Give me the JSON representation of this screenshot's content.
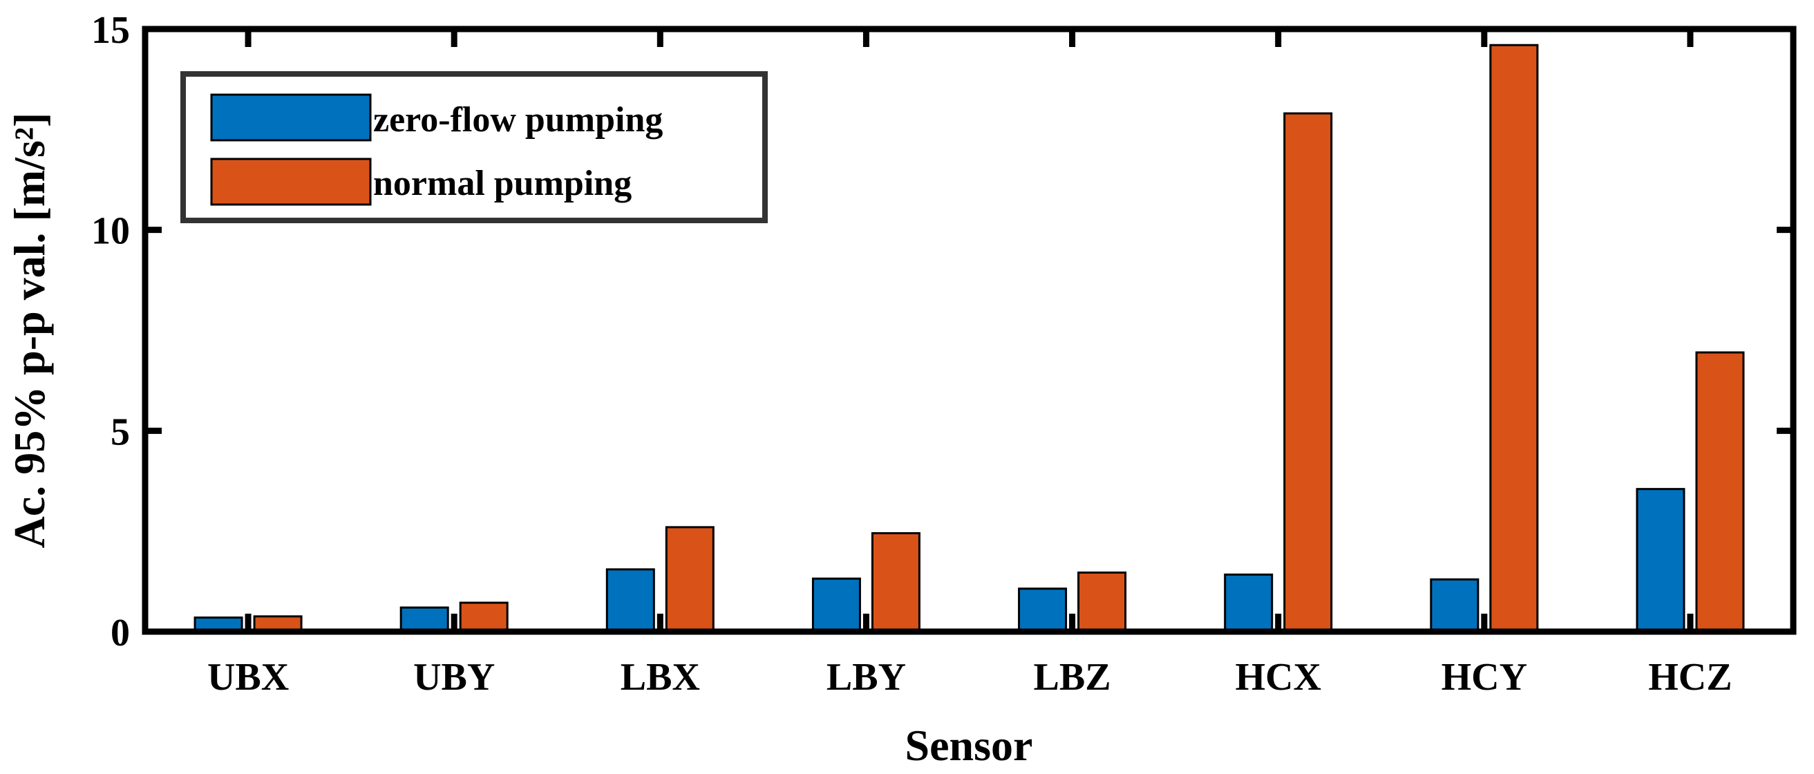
{
  "chart_data": {
    "type": "bar",
    "title": "",
    "xlabel": "Sensor",
    "ylabel": "Ac. 95% p-p val. [m/s²]",
    "categories": [
      "UBX",
      "UBY",
      "LBX",
      "LBY",
      "LBZ",
      "HCX",
      "HCY",
      "HCZ"
    ],
    "series": [
      {
        "name": "zero-flow pumping",
        "color": "#0072BD",
        "values": [
          0.35,
          0.6,
          1.55,
          1.32,
          1.07,
          1.42,
          1.3,
          3.55
        ]
      },
      {
        "name": "normal pumping",
        "color": "#D95319",
        "values": [
          0.38,
          0.72,
          2.6,
          2.45,
          1.47,
          12.9,
          14.6,
          6.95
        ]
      }
    ],
    "ylim": [
      0,
      15
    ],
    "yticks": [
      0,
      5,
      10,
      15
    ],
    "grid": false,
    "legend_position": "top-left"
  }
}
